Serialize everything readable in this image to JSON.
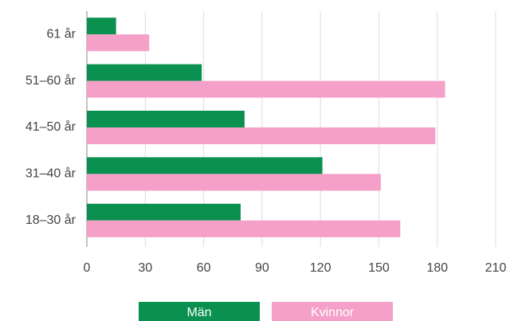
{
  "chart_data": {
    "type": "hbar",
    "categories": [
      "61 år",
      "51–60 år",
      "41–50 år",
      "31–40 år",
      "18–30 år"
    ],
    "series": [
      {
        "name": "Män",
        "color": "#0a9150",
        "values": [
          15,
          59,
          81,
          121,
          79
        ]
      },
      {
        "name": "Kvinnor",
        "color": "#f4a0c8",
        "values": [
          32,
          184,
          179,
          151,
          161
        ]
      }
    ],
    "xlim": [
      0,
      210
    ],
    "xticks": [
      0,
      30,
      60,
      90,
      120,
      150,
      180,
      210
    ],
    "grid": true
  }
}
